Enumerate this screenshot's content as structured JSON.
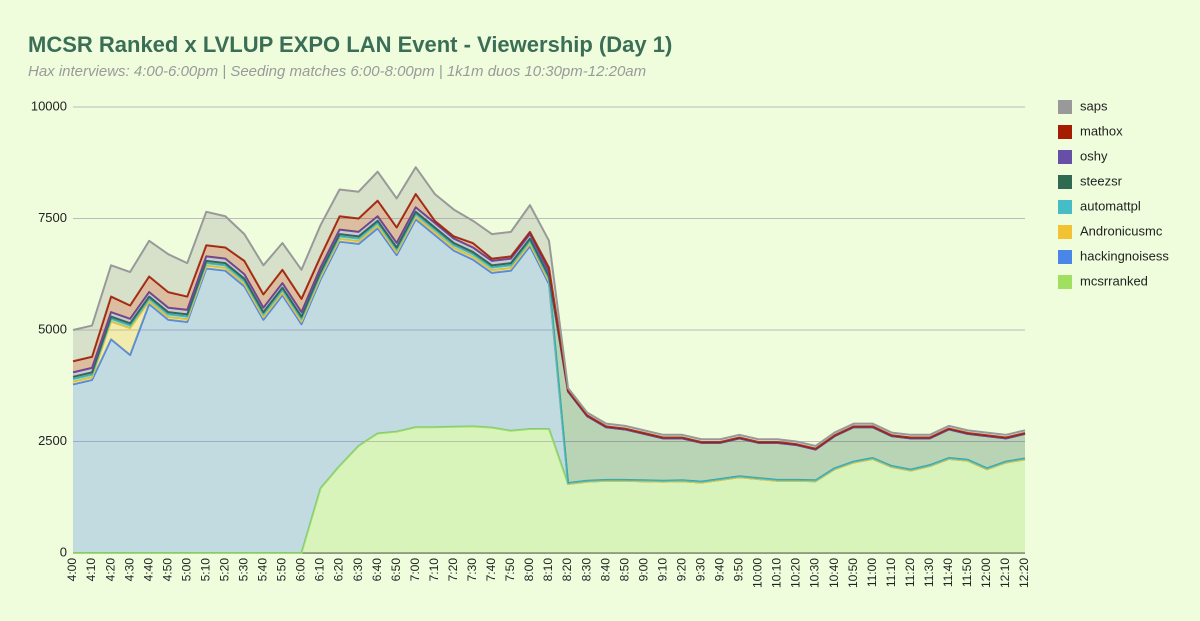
{
  "chart_data": {
    "type": "stacked_area",
    "title": "MCSR Ranked x LVLUP EXPO LAN Event - Viewership (Day 1)",
    "subtitle": "Hax interviews: 4:00-6:00pm | Seeding matches 6:00-8:00pm | 1k1m duos 10:30pm-12:20am",
    "categories": [
      "4:00",
      "4:10",
      "4:20",
      "4:30",
      "4:40",
      "4:50",
      "5:00",
      "5:10",
      "5:20",
      "5:30",
      "5:40",
      "5:50",
      "6:00",
      "6:10",
      "6:20",
      "6:30",
      "6:40",
      "6:50",
      "7:00",
      "7:10",
      "7:20",
      "7:30",
      "7:40",
      "7:50",
      "8:00",
      "8:10",
      "8:20",
      "8:30",
      "8:40",
      "8:50",
      "9:00",
      "9:10",
      "9:20",
      "9:30",
      "9:40",
      "9:50",
      "10:00",
      "10:10",
      "10:20",
      "10:30",
      "10:40",
      "10:50",
      "11:00",
      "11:10",
      "11:20",
      "11:30",
      "11:40",
      "11:50",
      "12:00",
      "12:10",
      "12:20"
    ],
    "series": [
      {
        "name": "saps",
        "color": "#999999",
        "values": [
          700,
          700,
          700,
          750,
          800,
          850,
          750,
          750,
          700,
          600,
          650,
          600,
          650,
          700,
          600,
          600,
          650,
          650,
          600,
          600,
          600,
          500,
          550,
          550,
          600,
          600,
          60,
          60,
          60,
          60,
          60,
          60,
          60,
          60,
          60,
          60,
          60,
          60,
          60,
          60,
          60,
          60,
          60,
          60,
          60,
          60,
          60,
          60,
          60,
          60,
          60
        ]
      },
      {
        "name": "mathox",
        "color": "#a61c00",
        "values": [
          250,
          250,
          350,
          300,
          350,
          350,
          300,
          250,
          250,
          300,
          300,
          300,
          300,
          250,
          300,
          300,
          350,
          350,
          300,
          50,
          50,
          100,
          50,
          50,
          50,
          100,
          20,
          20,
          20,
          20,
          20,
          20,
          20,
          20,
          20,
          20,
          20,
          20,
          20,
          20,
          20,
          20,
          20,
          20,
          20,
          20,
          20,
          20,
          20,
          20,
          20
        ]
      },
      {
        "name": "oshy",
        "color": "#674ea7",
        "values": [
          100,
          100,
          100,
          100,
          100,
          100,
          100,
          100,
          100,
          100,
          100,
          100,
          100,
          100,
          100,
          100,
          100,
          100,
          100,
          100,
          100,
          100,
          100,
          100,
          100,
          100,
          0,
          0,
          0,
          0,
          0,
          0,
          0,
          0,
          0,
          0,
          0,
          0,
          0,
          0,
          0,
          0,
          0,
          0,
          0,
          0,
          0,
          0,
          0,
          0,
          0
        ]
      },
      {
        "name": "steezsr",
        "color": "#2f6b50",
        "values": [
          50,
          50,
          50,
          50,
          50,
          50,
          50,
          50,
          50,
          50,
          50,
          50,
          50,
          50,
          50,
          50,
          50,
          50,
          50,
          50,
          50,
          50,
          50,
          50,
          50,
          50,
          2050,
          1450,
          1180,
          1130,
          1040,
          950,
          940,
          870,
          810,
          850,
          790,
          830,
          780,
          690,
          720,
          770,
          690,
          670,
          700,
          600,
          640,
          580,
          720,
          520,
          550
        ]
      },
      {
        "name": "automattpl",
        "color": "#46bdc6",
        "values": [
          60,
          60,
          60,
          60,
          60,
          60,
          60,
          60,
          60,
          60,
          60,
          60,
          60,
          60,
          60,
          60,
          60,
          60,
          60,
          60,
          60,
          60,
          60,
          60,
          60,
          60,
          20,
          20,
          20,
          20,
          20,
          20,
          20,
          20,
          20,
          20,
          20,
          20,
          20,
          20,
          20,
          20,
          20,
          20,
          20,
          20,
          20,
          20,
          20,
          20,
          20
        ]
      },
      {
        "name": "Andronicusmc",
        "color": "#f1c232",
        "values": [
          60,
          60,
          400,
          600,
          60,
          60,
          60,
          60,
          60,
          60,
          60,
          60,
          60,
          60,
          60,
          60,
          60,
          60,
          60,
          60,
          60,
          60,
          60,
          60,
          60,
          60,
          0,
          0,
          0,
          0,
          0,
          0,
          0,
          0,
          0,
          0,
          0,
          0,
          0,
          0,
          0,
          0,
          0,
          0,
          0,
          0,
          0,
          0,
          0,
          0,
          0
        ]
      },
      {
        "name": "hackingnoisess",
        "color": "#4a86e8",
        "values": [
          3780,
          3880,
          4790,
          4440,
          5580,
          5230,
          5180,
          6380,
          6330,
          5980,
          5230,
          5780,
          5130,
          4680,
          5030,
          4530,
          4600,
          3960,
          4660,
          4310,
          3950,
          3740,
          3470,
          3590,
          4100,
          3250,
          0,
          0,
          0,
          0,
          0,
          0,
          0,
          0,
          0,
          0,
          0,
          0,
          0,
          0,
          0,
          0,
          0,
          0,
          0,
          0,
          0,
          0,
          0,
          0,
          0
        ]
      },
      {
        "name": "mcsrranked",
        "color": "#9fe060",
        "values": [
          0,
          0,
          0,
          0,
          0,
          0,
          0,
          0,
          0,
          0,
          0,
          0,
          0,
          1450,
          1950,
          2400,
          2680,
          2720,
          2820,
          2820,
          2830,
          2840,
          2810,
          2740,
          2780,
          2780,
          1550,
          1600,
          1620,
          1620,
          1610,
          1600,
          1610,
          1580,
          1640,
          1700,
          1660,
          1620,
          1620,
          1610,
          1880,
          2030,
          2110,
          1930,
          1850,
          1950,
          2110,
          2070,
          1880,
          2030,
          2100
        ]
      }
    ],
    "ylim": [
      0,
      10000
    ],
    "yticks": [
      0,
      2500,
      5000,
      7500,
      10000
    ],
    "grid": true,
    "legend": "right"
  }
}
